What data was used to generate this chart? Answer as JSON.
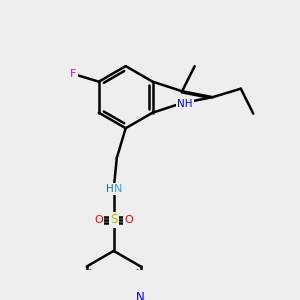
{
  "bg_color": "#eeeeee",
  "bond_color": "#000000",
  "bond_width": 1.5,
  "figsize": [
    3.0,
    3.0
  ],
  "dpi": 100,
  "atom_colors": {
    "F": "#ff00ff",
    "N_indole": "#0000ff",
    "NH": "#008080",
    "N_py": "#0000ff",
    "S": "#cccc00",
    "O": "#ff0000",
    "C": "#000000",
    "H": "#000000"
  }
}
